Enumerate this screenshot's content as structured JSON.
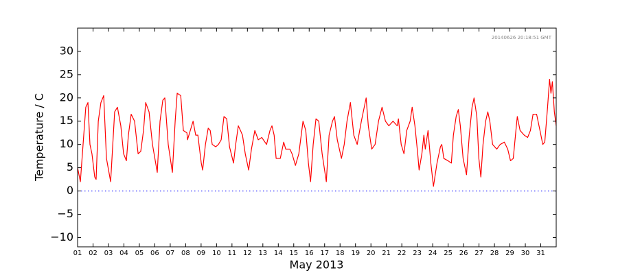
{
  "chart_data": {
    "type": "line",
    "xlabel": "May 2013",
    "ylabel": "Temperature / C",
    "annotation": "20140626 20:18:51 GMT",
    "xlim": [
      1,
      32
    ],
    "ylim": [
      -12,
      35
    ],
    "xticks": [
      {
        "value": 1,
        "label": "01"
      },
      {
        "value": 2,
        "label": "02"
      },
      {
        "value": 3,
        "label": "03"
      },
      {
        "value": 4,
        "label": "04"
      },
      {
        "value": 5,
        "label": "05"
      },
      {
        "value": 6,
        "label": "06"
      },
      {
        "value": 7,
        "label": "07"
      },
      {
        "value": 8,
        "label": "08"
      },
      {
        "value": 9,
        "label": "09"
      },
      10,
      11,
      12,
      13,
      14,
      15,
      16,
      17,
      18,
      19,
      20,
      21,
      22,
      23,
      24,
      25,
      26,
      27,
      28,
      29,
      30,
      31
    ],
    "yticks": [
      {
        "value": -10,
        "label": "−10"
      },
      {
        "value": -5,
        "label": "−5"
      },
      0,
      5,
      10,
      15,
      20,
      25,
      30
    ],
    "hline": 0,
    "hline_color": "#0000ff",
    "x": [
      1.0,
      1.18,
      1.53,
      1.67,
      1.8,
      1.93,
      2.11,
      2.2,
      2.34,
      2.51,
      2.69,
      2.87,
      3.14,
      3.4,
      3.58,
      3.8,
      3.98,
      4.16,
      4.29,
      4.47,
      4.69,
      4.92,
      5.09,
      5.27,
      5.41,
      5.63,
      5.85,
      6.16,
      6.34,
      6.52,
      6.65,
      6.87,
      7.14,
      7.32,
      7.45,
      7.68,
      7.85,
      8.08,
      8.12,
      8.3,
      8.48,
      8.65,
      8.79,
      9.01,
      9.1,
      9.28,
      9.46,
      9.59,
      9.72,
      9.95,
      10.12,
      10.3,
      10.48,
      10.66,
      10.84,
      11.1,
      11.24,
      11.41,
      11.55,
      11.68,
      11.86,
      12.08,
      12.26,
      12.48,
      12.7,
      12.93,
      13.24,
      13.46,
      13.59,
      13.73,
      13.86,
      14.13,
      14.35,
      14.48,
      14.75,
      14.89,
      15.11,
      15.33,
      15.6,
      15.78,
      15.95,
      16.09,
      16.26,
      16.44,
      16.62,
      16.84,
      17.11,
      17.29,
      17.51,
      17.64,
      17.82,
      18.09,
      18.27,
      18.45,
      18.67,
      18.89,
      19.11,
      19.38,
      19.69,
      19.83,
      20.05,
      20.27,
      20.49,
      20.72,
      20.94,
      21.16,
      21.43,
      21.7,
      21.78,
      21.96,
      22.14,
      22.32,
      22.54,
      22.67,
      22.85,
      23.03,
      23.12,
      23.3,
      23.43,
      23.52,
      23.7,
      23.88,
      24.05,
      24.28,
      24.5,
      24.59,
      24.72,
      24.99,
      25.21,
      25.34,
      25.52,
      25.66,
      25.79,
      25.97,
      26.19,
      26.37,
      26.55,
      26.68,
      26.86,
      26.99,
      27.12,
      27.26,
      27.43,
      27.57,
      27.7,
      27.88,
      28.15,
      28.37,
      28.64,
      28.86,
      29.04,
      29.22,
      29.39,
      29.48,
      29.66,
      29.93,
      30.15,
      30.33,
      30.5,
      30.73,
      30.95,
      31.13,
      31.26,
      31.44,
      31.57,
      31.66,
      31.75,
      31.88,
      32.0
    ],
    "series": [
      {
        "color": "#ff0000",
        "values": [
          5,
          2,
          18,
          19,
          10,
          8,
          3,
          2.5,
          15,
          19,
          20.5,
          7,
          2,
          17,
          18,
          14,
          8,
          6.5,
          12,
          16.5,
          15,
          8,
          8.5,
          13,
          19,
          17,
          10,
          4,
          15,
          19.5,
          20,
          10,
          4,
          15,
          21,
          20.5,
          13,
          12.5,
          11,
          13,
          15,
          12,
          12,
          6,
          4.5,
          10,
          13.5,
          13,
          10,
          9.5,
          10,
          11,
          16,
          15.5,
          9.5,
          6,
          10,
          14,
          13,
          12,
          8,
          4.5,
          9,
          13,
          11,
          11.5,
          10,
          13,
          14,
          12,
          7,
          7,
          10.5,
          9,
          9,
          8,
          5.5,
          8,
          15,
          13,
          6,
          2,
          10,
          15.5,
          15,
          8,
          2,
          12,
          15,
          16,
          11,
          7,
          10,
          15,
          19,
          12,
          10,
          15,
          20,
          14,
          9,
          10,
          15,
          18,
          15,
          14,
          15,
          14,
          15.5,
          10,
          8,
          13,
          15,
          18,
          14,
          8,
          4.5,
          8,
          12,
          9,
          13,
          6,
          1,
          6,
          9.5,
          10,
          7,
          6.5,
          6,
          12,
          16,
          17.5,
          14,
          7,
          3.5,
          12,
          18,
          20,
          16,
          7,
          3,
          10,
          15,
          17,
          15,
          10,
          9,
          10,
          10.5,
          9,
          6.5,
          7,
          13,
          16,
          13,
          12,
          11.5,
          13,
          16.5,
          16.5,
          13,
          10,
          10.5,
          18,
          24,
          21,
          23.5,
          17,
          14
        ]
      }
    ]
  }
}
